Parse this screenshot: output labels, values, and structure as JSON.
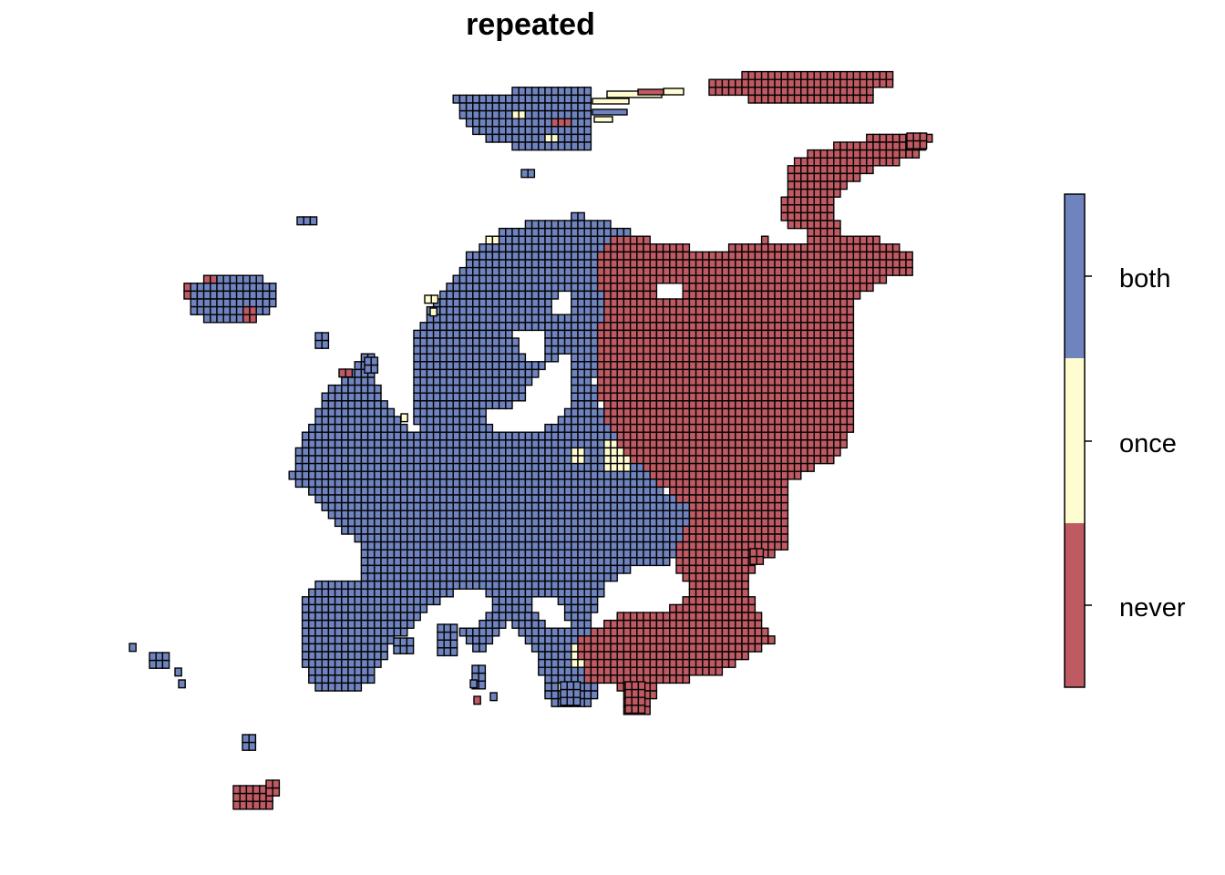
{
  "title": "repeated",
  "colors": {
    "both": "#6F84BF",
    "once": "#FFFDD0",
    "never": "#BF5A63",
    "outline": "#000000"
  },
  "legend": {
    "categories": [
      {
        "key": "both",
        "label": "both"
      },
      {
        "key": "once",
        "label": "once"
      },
      {
        "key": "never",
        "label": "never"
      }
    ]
  }
}
